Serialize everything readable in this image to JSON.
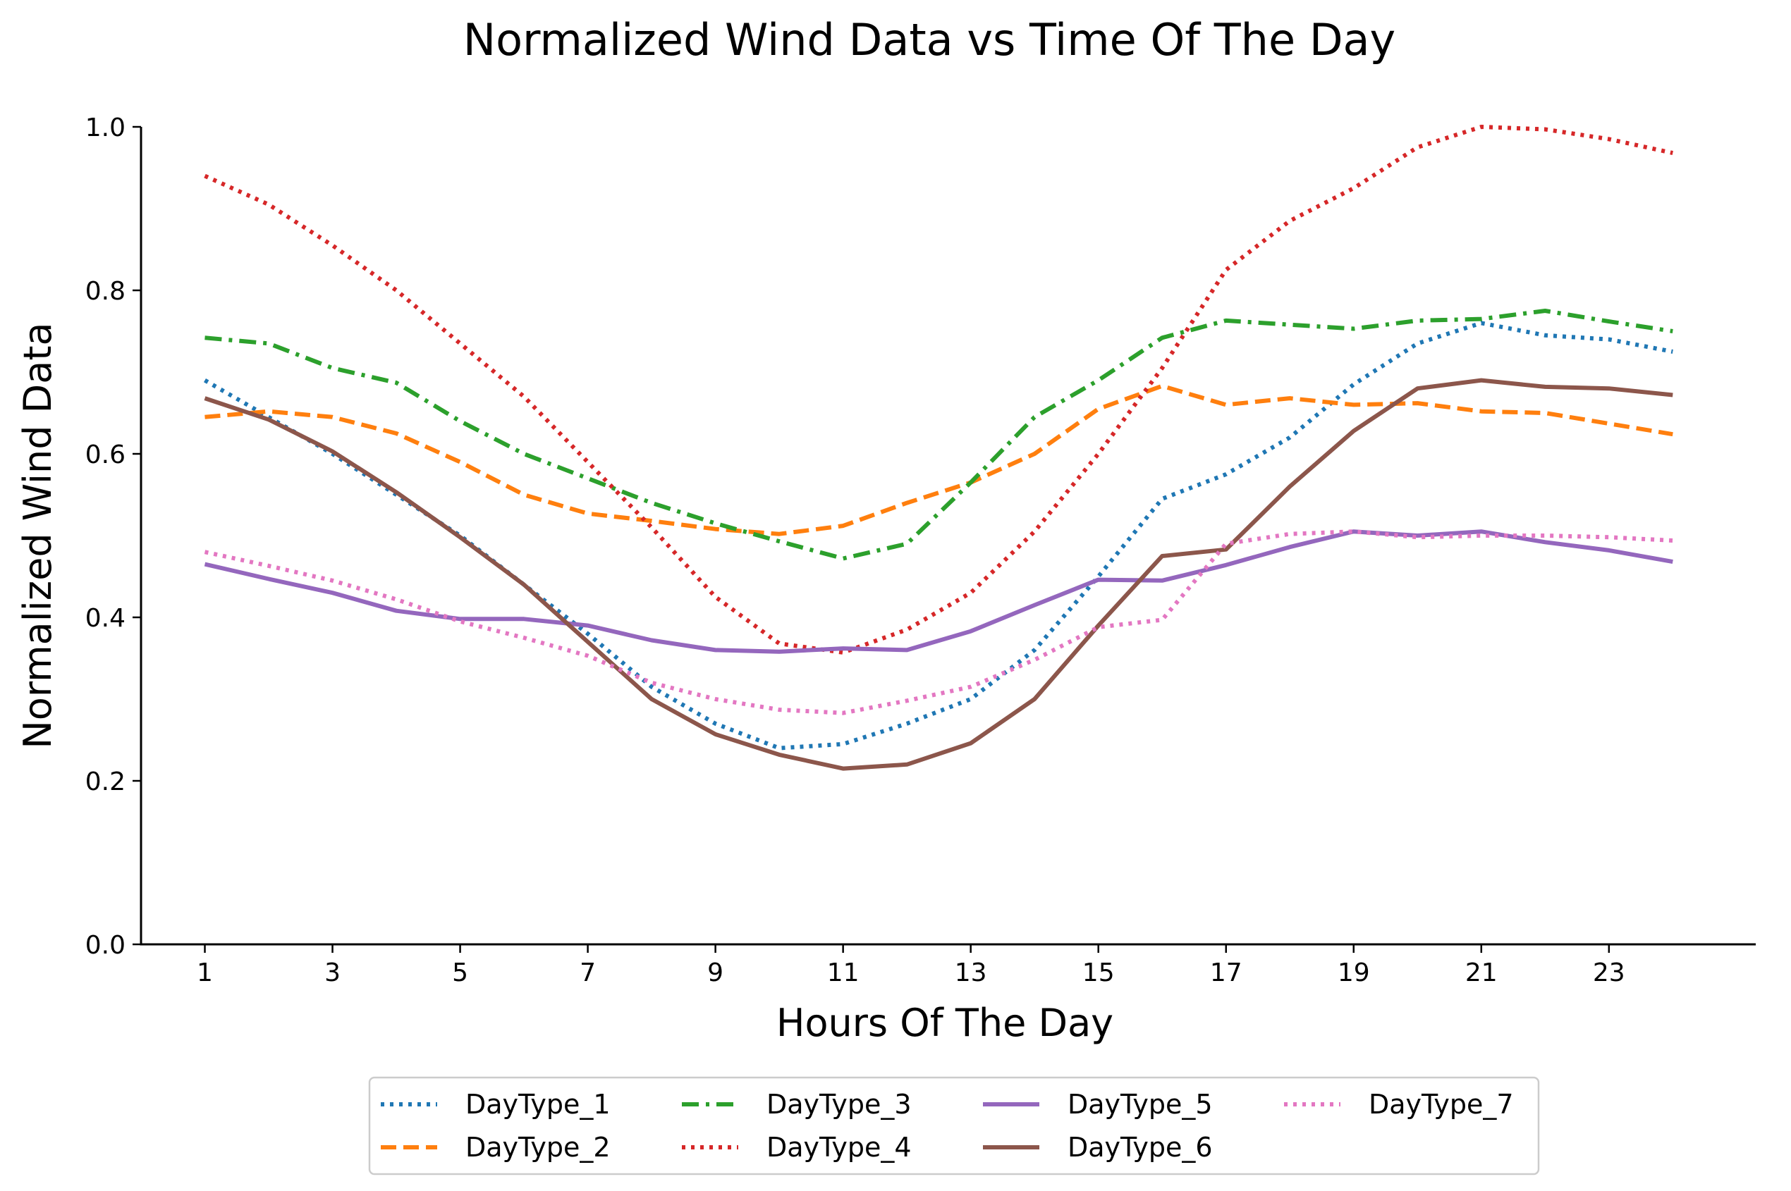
{
  "chart_data": {
    "type": "line",
    "title": "Normalized Wind Data vs Time Of The Day",
    "xlabel": "Hours Of The Day",
    "ylabel": "Normalized Wind Data",
    "xlim": [
      0,
      25.3
    ],
    "ylim": [
      0.0,
      1.0
    ],
    "x_ticks": [
      "1",
      "3",
      "5",
      "7",
      "9",
      "11",
      "13",
      "15",
      "17",
      "19",
      "21",
      "23"
    ],
    "y_ticks": [
      "0.0",
      "0.2",
      "0.4",
      "0.6",
      "0.8",
      "1.0"
    ],
    "grid": false,
    "legend_position": "bottom-center",
    "x": [
      1,
      2,
      3,
      4,
      5,
      6,
      7,
      8,
      9,
      10,
      11,
      12,
      13,
      14,
      15,
      16,
      17,
      18,
      19,
      20,
      21,
      22,
      23,
      24
    ],
    "series": [
      {
        "name": "DayType_1",
        "color": "#1f77b4",
        "style": "dotted",
        "values": [
          0.69,
          0.645,
          0.6,
          0.55,
          0.5,
          0.44,
          0.38,
          0.315,
          0.27,
          0.24,
          0.245,
          0.27,
          0.3,
          0.36,
          0.45,
          0.545,
          0.575,
          0.62,
          0.685,
          0.735,
          0.76,
          0.745,
          0.74,
          0.725
        ]
      },
      {
        "name": "DayType_2",
        "color": "#ff7f0e",
        "style": "dashed",
        "values": [
          0.645,
          0.652,
          0.645,
          0.625,
          0.59,
          0.55,
          0.527,
          0.518,
          0.508,
          0.502,
          0.512,
          0.54,
          0.565,
          0.6,
          0.655,
          0.683,
          0.66,
          0.668,
          0.66,
          0.662,
          0.652,
          0.65,
          0.637,
          0.624
        ]
      },
      {
        "name": "DayType_3",
        "color": "#2ca02c",
        "style": "dashdot",
        "values": [
          0.742,
          0.735,
          0.705,
          0.687,
          0.64,
          0.6,
          0.57,
          0.54,
          0.515,
          0.493,
          0.472,
          0.49,
          0.565,
          0.645,
          0.69,
          0.742,
          0.763,
          0.758,
          0.753,
          0.763,
          0.765,
          0.775,
          0.762,
          0.75
        ]
      },
      {
        "name": "DayType_4",
        "color": "#d62728",
        "style": "dotted",
        "values": [
          0.94,
          0.905,
          0.855,
          0.8,
          0.735,
          0.67,
          0.59,
          0.51,
          0.425,
          0.368,
          0.357,
          0.385,
          0.43,
          0.505,
          0.6,
          0.705,
          0.825,
          0.885,
          0.925,
          0.975,
          1.0,
          0.997,
          0.985,
          0.968
        ]
      },
      {
        "name": "DayType_5",
        "color": "#9467bd",
        "style": "solid",
        "values": [
          0.465,
          0.447,
          0.43,
          0.408,
          0.398,
          0.398,
          0.39,
          0.372,
          0.36,
          0.358,
          0.362,
          0.36,
          0.383,
          0.415,
          0.446,
          0.445,
          0.464,
          0.486,
          0.505,
          0.5,
          0.505,
          0.492,
          0.482,
          0.468
        ]
      },
      {
        "name": "DayType_6",
        "color": "#8c564b",
        "style": "solid",
        "values": [
          0.668,
          0.642,
          0.603,
          0.553,
          0.498,
          0.44,
          0.37,
          0.3,
          0.257,
          0.232,
          0.215,
          0.22,
          0.246,
          0.3,
          0.39,
          0.475,
          0.483,
          0.56,
          0.628,
          0.68,
          0.69,
          0.682,
          0.68,
          0.672
        ]
      },
      {
        "name": "DayType_7",
        "color": "#e377c2",
        "style": "dotted",
        "values": [
          0.48,
          0.463,
          0.445,
          0.422,
          0.395,
          0.375,
          0.353,
          0.32,
          0.3,
          0.287,
          0.283,
          0.298,
          0.315,
          0.348,
          0.388,
          0.397,
          0.49,
          0.502,
          0.505,
          0.498,
          0.5,
          0.5,
          0.498,
          0.494
        ]
      }
    ]
  }
}
